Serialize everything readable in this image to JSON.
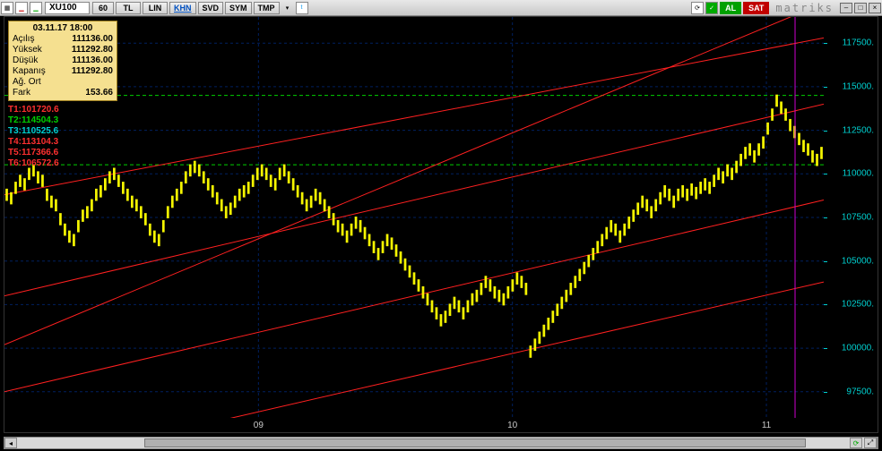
{
  "toolbar": {
    "symbol": "XU100",
    "interval": "60",
    "buttons": [
      "TL",
      "LIN",
      "KHN",
      "SVD",
      "SYM",
      "TMP"
    ],
    "active_button": "KHN",
    "al_label": "AL",
    "sat_label": "SAT",
    "brand": "matriks"
  },
  "ohlc": {
    "datetime": "03.11.17 18:00",
    "rows": [
      {
        "label": "Açılış",
        "value": "111136.00"
      },
      {
        "label": "Yüksek",
        "value": "111292.80"
      },
      {
        "label": "Düşük",
        "value": "111136.00"
      },
      {
        "label": "Kapanış",
        "value": "111292.80"
      },
      {
        "label": "Ağ. Ort",
        "value": ""
      },
      {
        "label": "Fark",
        "value": "153.66"
      }
    ]
  },
  "t_levels": [
    {
      "text": "T1:101720.6",
      "color": "#ff3030"
    },
    {
      "text": "T2:114504.3",
      "color": "#00d000"
    },
    {
      "text": "T3:110525.6",
      "color": "#00d0d0"
    },
    {
      "text": "T4:113104.3",
      "color": "#ff3030"
    },
    {
      "text": "T5:117366.6",
      "color": "#ff3030"
    },
    {
      "text": "T6:106572.6",
      "color": "#ff3030"
    }
  ],
  "chart": {
    "type": "candlestick",
    "y_axis": {
      "color": "#00d0d0",
      "ticks": [
        97500,
        100000,
        102500,
        105000,
        107500,
        110000,
        112500,
        115000,
        117500
      ],
      "ylim": [
        96000,
        119000
      ]
    },
    "x_axis": {
      "color": "#c8c8c8",
      "ticks": [
        {
          "x": 0.31,
          "label": "09"
        },
        {
          "x": 0.62,
          "label": "10"
        },
        {
          "x": 0.93,
          "label": "11"
        }
      ]
    },
    "grid": {
      "color": "#002060",
      "dash": "3 3"
    },
    "green_dash_levels": [
      114500,
      110525
    ],
    "green_dash_color": "#00d000",
    "trend_lines": {
      "color": "#ff2020",
      "width": 1,
      "lines": [
        {
          "x1": 0.0,
          "y1": 100200,
          "x2": 1.0,
          "y2": 119800
        },
        {
          "x1": 0.0,
          "y1": 108800,
          "x2": 1.0,
          "y2": 117800
        },
        {
          "x1": 0.0,
          "y1": 103000,
          "x2": 1.0,
          "y2": 114000
        },
        {
          "x1": 0.0,
          "y1": 97500,
          "x2": 1.0,
          "y2": 108500
        },
        {
          "x1": 0.0,
          "y1": 93000,
          "x2": 1.0,
          "y2": 103800
        }
      ]
    },
    "price_color": "#f5f500",
    "cursor_line": {
      "x": 0.965,
      "color": "#d000d0"
    },
    "series_close": [
      108800,
      108600,
      109200,
      109600,
      109400,
      110000,
      110200,
      109800,
      109600,
      108800,
      108400,
      108200,
      107400,
      106800,
      106400,
      106200,
      107000,
      107600,
      107800,
      108200,
      108800,
      109000,
      109400,
      109800,
      110000,
      109600,
      109200,
      108800,
      108400,
      108200,
      107800,
      107400,
      106800,
      106400,
      106200,
      107000,
      107800,
      108400,
      108800,
      109200,
      109800,
      110200,
      110400,
      110200,
      109800,
      109400,
      109000,
      108600,
      108200,
      107800,
      108000,
      108400,
      108800,
      109000,
      109200,
      109600,
      110000,
      110200,
      110000,
      109600,
      109400,
      110000,
      110200,
      109800,
      109400,
      109000,
      108600,
      108200,
      108400,
      108800,
      108600,
      108200,
      107800,
      107400,
      107000,
      106800,
      106400,
      106800,
      107200,
      107000,
      106600,
      106200,
      105800,
      105400,
      105800,
      106200,
      106000,
      105600,
      105200,
      104800,
      104400,
      104000,
      103600,
      103200,
      102800,
      102400,
      102000,
      101600,
      101800,
      102200,
      102600,
      102400,
      102000,
      102400,
      102800,
      103000,
      103400,
      103800,
      103600,
      103200,
      103000,
      102800,
      103200,
      103600,
      104000,
      103800,
      103400,
      99800,
      100200,
      100600,
      101000,
      101400,
      101800,
      102200,
      102600,
      103000,
      103400,
      103800,
      104200,
      104600,
      105000,
      105400,
      105800,
      106200,
      106600,
      107000,
      106800,
      106400,
      106800,
      107200,
      107600,
      108000,
      108400,
      108200,
      107800,
      108200,
      108600,
      109000,
      108800,
      108400,
      108800,
      109000,
      108800,
      109100,
      108900,
      109200,
      109400,
      109200,
      109600,
      110000,
      109800,
      110200,
      110000,
      110400,
      110800,
      111200,
      111400,
      111000,
      111400,
      111800,
      112600,
      113400,
      114200,
      113800,
      113400,
      112800,
      112400,
      112000,
      111600,
      111400,
      111000,
      110800,
      111200
    ],
    "series_hl_spread": 700
  },
  "scrollbar": {
    "thumb_left_pct": 15,
    "thumb_width_pct": 78
  },
  "colors": {
    "bg": "#000000",
    "panel_bg": "#f5e090",
    "toolbar_bg": "#d8d8d8"
  }
}
